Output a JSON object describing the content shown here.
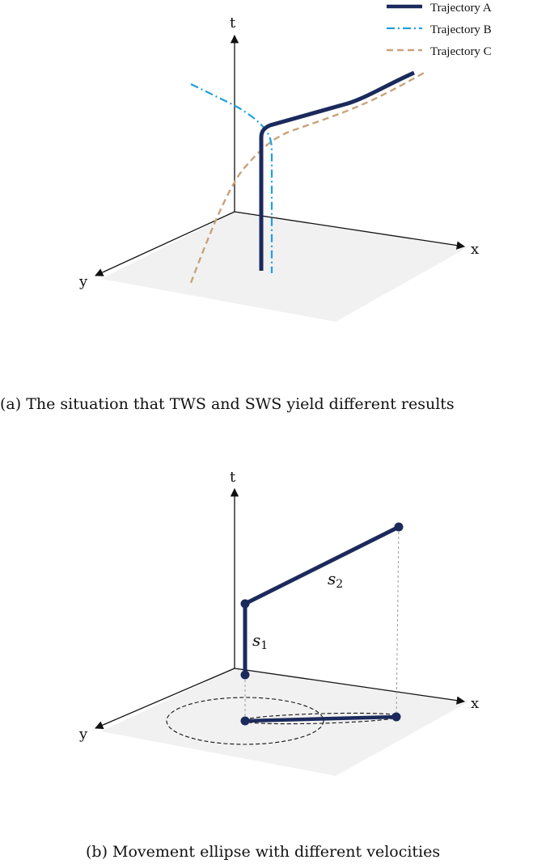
{
  "panel_a": {
    "axes": {
      "t": "t",
      "x": "x",
      "y": "y"
    },
    "legend": [
      {
        "label": "Trajectory A",
        "color": "#1b2a5c",
        "style": "solid"
      },
      {
        "label": "Trajectory B",
        "color": "#1ea0e0",
        "style": "dash-dot"
      },
      {
        "label": "Trajectory C",
        "color": "#c9a27a",
        "style": "dashed"
      }
    ],
    "caption": "(a) The situation that TWS and SWS yield different results"
  },
  "panel_b": {
    "axes": {
      "t": "t",
      "x": "x",
      "y": "y"
    },
    "segments": [
      {
        "label": "s",
        "sub": "1"
      },
      {
        "label": "s",
        "sub": "2"
      }
    ],
    "caption": "(b) Movement ellipse with different velocities"
  }
}
